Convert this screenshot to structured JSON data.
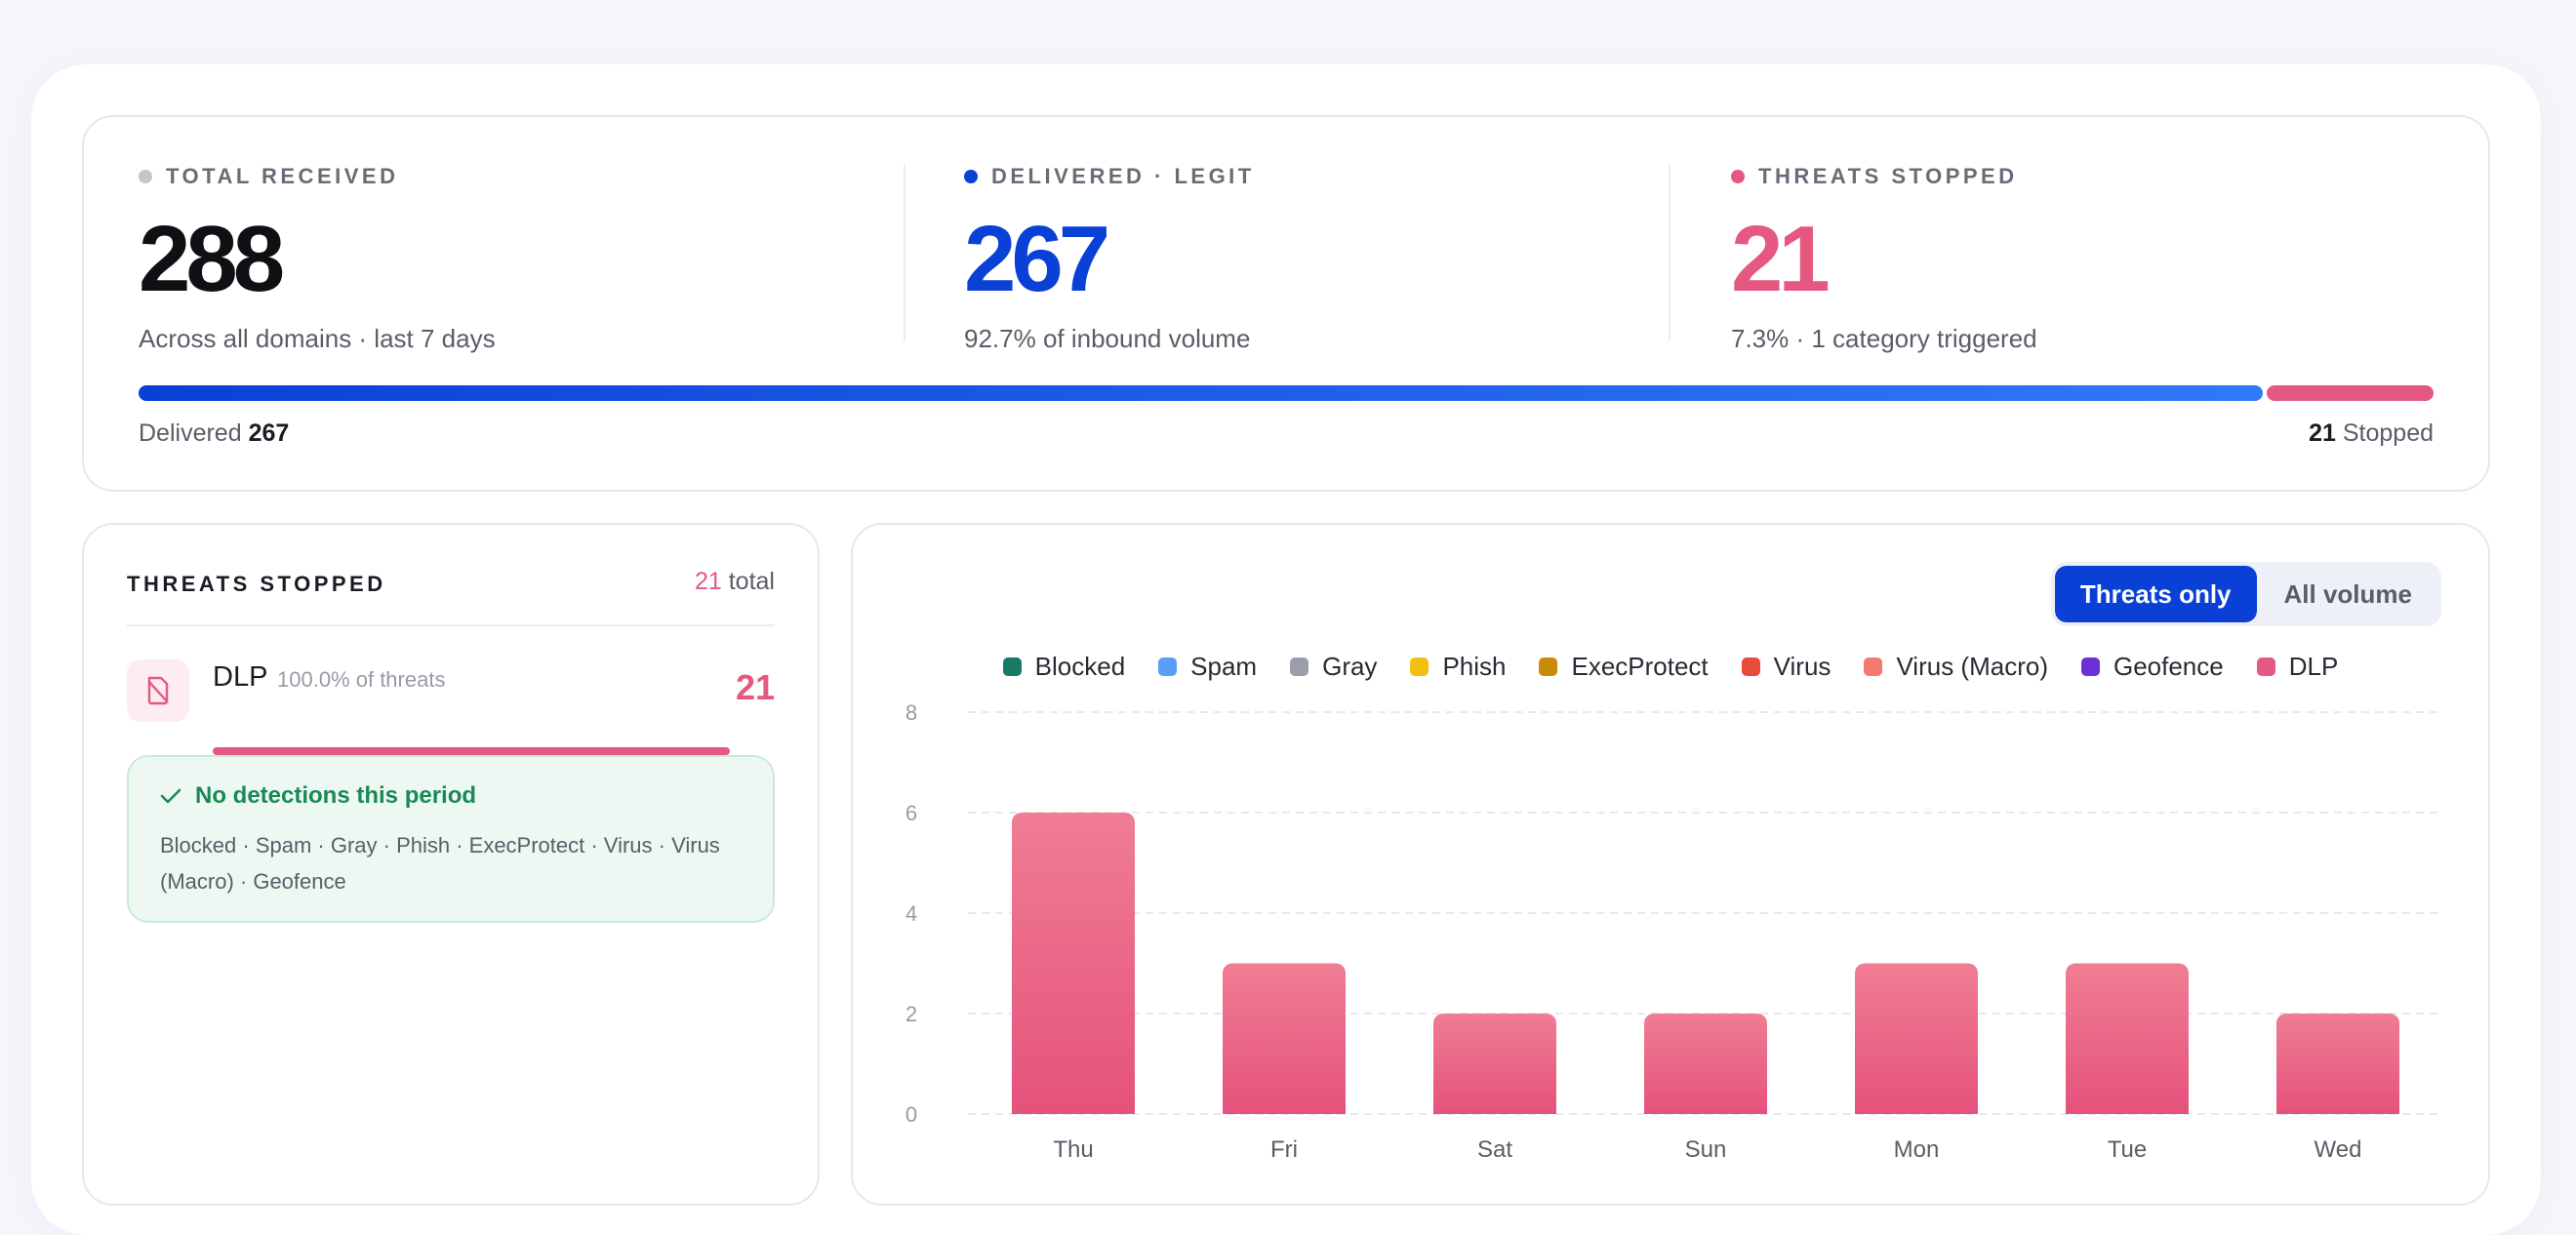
{
  "summary": {
    "total": {
      "label": "TOTAL RECEIVED",
      "value": "288",
      "sub": "Across all domains · last 7 days",
      "dot_color": "#c4c4cc"
    },
    "delivered": {
      "label": "DELIVERED · LEGIT",
      "value": "267",
      "sub": "92.7% of inbound volume",
      "dot_color": "#0b40d6"
    },
    "threats": {
      "label": "THREATS STOPPED",
      "value": "21",
      "sub": "7.3% · 1 category triggered",
      "dot_color": "#e5587f"
    },
    "bar": {
      "delivered_label": "Delivered",
      "delivered_value": "267",
      "stopped_value": "21",
      "stopped_label": "Stopped",
      "delivered_fraction": 0.927
    }
  },
  "threats_panel": {
    "title": "THREATS STOPPED",
    "total_value": "21",
    "total_label": "total",
    "categories": [
      {
        "name": "DLP",
        "pct": "100.0% of threats",
        "count": "21",
        "icon": "document-blocked-icon",
        "fraction": 1.0
      }
    ],
    "no_detections": {
      "title": "No detections this period",
      "list": "Blocked · Spam · Gray · Phish · ExecProtect · Virus · Virus (Macro) · Geofence"
    }
  },
  "chart_panel": {
    "toggle": {
      "active": "Threats only",
      "inactive": "All volume"
    },
    "legend": [
      {
        "name": "Blocked",
        "color": "#167a64"
      },
      {
        "name": "Spam",
        "color": "#5aa0f2"
      },
      {
        "name": "Gray",
        "color": "#9a9ea8"
      },
      {
        "name": "Phish",
        "color": "#f2c013"
      },
      {
        "name": "ExecProtect",
        "color": "#c98a0c"
      },
      {
        "name": "Virus",
        "color": "#e84a3c"
      },
      {
        "name": "Virus (Macro)",
        "color": "#f27a70"
      },
      {
        "name": "Geofence",
        "color": "#6d2fd8"
      },
      {
        "name": "DLP",
        "color": "#e5587f"
      }
    ]
  },
  "chart_data": {
    "type": "bar",
    "categories": [
      "Thu",
      "Fri",
      "Sat",
      "Sun",
      "Mon",
      "Tue",
      "Wed"
    ],
    "series": [
      {
        "name": "DLP",
        "values": [
          6,
          3,
          2,
          2,
          3,
          3,
          2
        ]
      }
    ],
    "ylim": [
      0,
      8
    ],
    "yticks": [
      0,
      2,
      4,
      6,
      8
    ],
    "grid": true,
    "legend_position": "top"
  }
}
